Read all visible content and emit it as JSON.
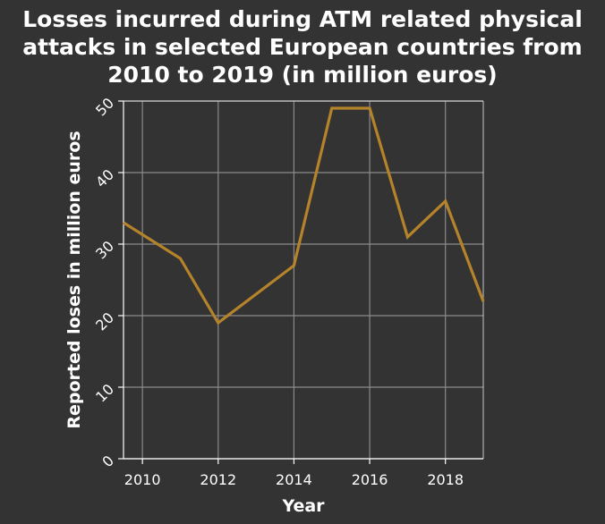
{
  "chart_data": {
    "type": "line",
    "title_lines": [
      "Losses incurred during ATM related physical",
      "attacks in selected European countries from",
      "2010 to 2019 (in million euros)"
    ],
    "xlabel": "Year",
    "ylabel": "Reported loses in million euros",
    "x": [
      2009.5,
      2011,
      2012,
      2014,
      2015,
      2016,
      2017,
      2018,
      2019
    ],
    "series": [
      {
        "values": [
          33,
          28,
          19,
          27,
          49,
          49,
          31,
          36,
          22
        ],
        "color": "#b5832a"
      }
    ],
    "xlim": [
      2009.5,
      2019
    ],
    "ylim": [
      0,
      50
    ],
    "x_ticks": [
      2010,
      2012,
      2014,
      2016,
      2018
    ],
    "x_tick_labels": [
      "2010",
      "2012",
      "2014",
      "2016",
      "2018"
    ],
    "y_ticks": [
      0,
      10,
      20,
      30,
      40,
      50
    ],
    "y_tick_labels": [
      "0",
      "10",
      "20",
      "30",
      "40",
      "50"
    ],
    "grid": true,
    "legend": "none",
    "colors": {
      "background": "#333333",
      "grid": "#8a8a8a",
      "text": "#ffffff",
      "line": "#b5832a"
    }
  }
}
